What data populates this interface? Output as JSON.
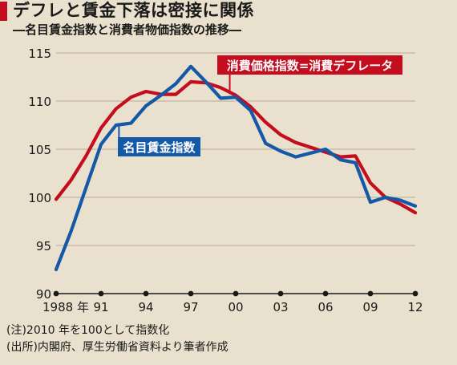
{
  "header": {
    "title": "デフレと賃金下落は密接に関係",
    "subtitle": "―名目賃金指数と消費者物価指数の推移―"
  },
  "notes": {
    "note1": "(注)2010 年を100として指数化",
    "note2": "(出所)内閣府、厚生労働省資料より筆者作成"
  },
  "colors": {
    "background": "#e9e0cd",
    "wage": "#1458a8",
    "price": "#c40d1e",
    "accent": "#c40d1e"
  },
  "chart_data": {
    "type": "line",
    "title": "デフレと賃金下落は密接に関係",
    "subtitle": "―名目賃金指数と消費者物価指数の推移―",
    "xlabel": "",
    "ylabel": "",
    "ylim": [
      90,
      115
    ],
    "yticks": [
      90,
      95,
      100,
      105,
      110,
      115
    ],
    "xlim": [
      1988,
      2012
    ],
    "xtick_labels": [
      {
        "x": 1988,
        "label": "1988 年"
      },
      {
        "x": 1991,
        "label": "91"
      },
      {
        "x": 1994,
        "label": "94"
      },
      {
        "x": 1997,
        "label": "97"
      },
      {
        "x": 2000,
        "label": "00"
      },
      {
        "x": 2003,
        "label": "03"
      },
      {
        "x": 2006,
        "label": "06"
      },
      {
        "x": 2009,
        "label": "09"
      },
      {
        "x": 2012,
        "label": "12"
      }
    ],
    "grid": true,
    "x": [
      1988,
      1989,
      1990,
      1991,
      1992,
      1993,
      1994,
      1995,
      1996,
      1997,
      1998,
      1999,
      2000,
      2001,
      2002,
      2003,
      2004,
      2005,
      2006,
      2007,
      2008,
      2009,
      2010,
      2011,
      2012
    ],
    "series": [
      {
        "name": "名目賃金指数",
        "color": "#1458a8",
        "values": [
          92.5,
          96.5,
          101.0,
          105.5,
          107.5,
          107.7,
          109.5,
          110.6,
          111.8,
          113.6,
          112.0,
          110.3,
          110.4,
          109.0,
          105.6,
          104.8,
          104.2,
          104.6,
          105.0,
          103.9,
          103.6,
          99.5,
          100.0,
          99.7,
          99.1
        ]
      },
      {
        "name": "消費価格指数=消費デフレータ",
        "color": "#c40d1e",
        "values": [
          99.8,
          101.8,
          104.3,
          107.2,
          109.2,
          110.4,
          111.0,
          110.7,
          110.7,
          112.0,
          111.9,
          111.4,
          110.6,
          109.4,
          107.8,
          106.5,
          105.7,
          105.2,
          104.7,
          104.2,
          104.3,
          101.5,
          100.0,
          99.3,
          98.4
        ]
      }
    ]
  }
}
